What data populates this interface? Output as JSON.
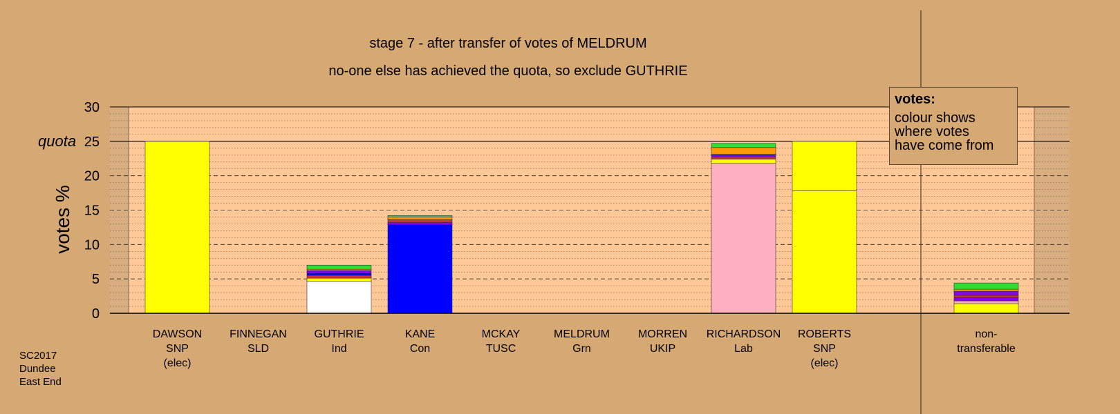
{
  "titles": {
    "line1": "stage 7 - after transfer of votes of MELDRUM",
    "line2": "no-one else has achieved the quota, so exclude GUTHRIE"
  },
  "legend": {
    "heading": "votes:",
    "lines": [
      "colour shows",
      "where votes",
      "have come from"
    ]
  },
  "footer": {
    "lines": [
      "SC2017",
      "Dundee",
      "East End"
    ]
  },
  "colors": {
    "background": "#d5a874",
    "plot_area": "#ffc896",
    "SNP": "#ffff00",
    "Con": "#0000ff",
    "Lab": "#ffb0c0",
    "Ind": "#ffffff",
    "Grn": "#33dd33",
    "SLD": "#ff9900",
    "TUSC": "#cc3333",
    "UKIP": "#8800ee"
  },
  "chart_data": {
    "type": "bar",
    "stacked": true,
    "ylabel": "votes %",
    "ylim": [
      0,
      30
    ],
    "yticks": [
      0,
      5,
      10,
      15,
      20,
      25,
      30
    ],
    "quota": 25,
    "quota_label": "quota",
    "grid": true,
    "candidates": [
      {
        "name": "DAWSON",
        "party": "SNP",
        "note": "(elec)",
        "segments": [
          {
            "source": "SNP",
            "color": "#ffff00",
            "value": 25.0
          }
        ]
      },
      {
        "name": "FINNEGAN",
        "party": "SLD",
        "note": "",
        "segments": []
      },
      {
        "name": "GUTHRIE",
        "party": "Ind",
        "note": "",
        "segments": [
          {
            "source": "Ind",
            "color": "#ffffff",
            "value": 4.6
          },
          {
            "source": "SNP",
            "color": "#ffff00",
            "value": 0.5
          },
          {
            "source": "TUSC",
            "color": "#cc3333",
            "value": 0.4
          },
          {
            "source": "Con",
            "color": "#0000ff",
            "value": 0.3
          },
          {
            "source": "UKIP",
            "color": "#8800ee",
            "value": 0.4
          },
          {
            "source": "SLD",
            "color": "#ff9900",
            "value": 0.2
          },
          {
            "source": "Grn",
            "color": "#33dd33",
            "value": 0.6
          }
        ]
      },
      {
        "name": "KANE",
        "party": "Con",
        "note": "",
        "segments": [
          {
            "source": "Con",
            "color": "#0000ff",
            "value": 12.9
          },
          {
            "source": "UKIP",
            "color": "#8800ee",
            "value": 0.3
          },
          {
            "source": "TUSC",
            "color": "#cc3333",
            "value": 0.4
          },
          {
            "source": "SLD",
            "color": "#ff9900",
            "value": 0.4
          },
          {
            "source": "Grn",
            "color": "#33dd33",
            "value": 0.2
          }
        ]
      },
      {
        "name": "MCKAY",
        "party": "TUSC",
        "note": "",
        "segments": []
      },
      {
        "name": "MELDRUM",
        "party": "Grn",
        "note": "",
        "segments": []
      },
      {
        "name": "MORREN",
        "party": "UKIP",
        "note": "",
        "segments": []
      },
      {
        "name": "RICHARDSON",
        "party": "Lab",
        "note": "",
        "segments": [
          {
            "source": "Lab",
            "color": "#ffb0c0",
            "value": 21.8
          },
          {
            "source": "SNP",
            "color": "#ffff00",
            "value": 0.6
          },
          {
            "source": "TUSC",
            "color": "#cc3333",
            "value": 0.3
          },
          {
            "source": "UKIP",
            "color": "#8800ee",
            "value": 0.3
          },
          {
            "source": "Con",
            "color": "#0000ff",
            "value": 0.1
          },
          {
            "source": "SLD",
            "color": "#ff9900",
            "value": 1.0
          },
          {
            "source": "Grn",
            "color": "#33dd33",
            "value": 0.6
          }
        ]
      },
      {
        "name": "ROBERTS",
        "party": "SNP",
        "note": "(elec)",
        "segments": [
          {
            "source": "SNP",
            "color": "#ffff00",
            "value": 17.8
          },
          {
            "source": "SNP",
            "color": "#ffff00",
            "value": 7.2
          }
        ]
      },
      {
        "name": "non-",
        "party": "transferable",
        "note": "",
        "segments": [
          {
            "source": "SNP",
            "color": "#ffff00",
            "value": 1.4
          },
          {
            "source": "Lab",
            "color": "#ffb0c0",
            "value": 0.4
          },
          {
            "source": "UKIP",
            "color": "#8800ee",
            "value": 0.5
          },
          {
            "source": "TUSC",
            "color": "#cc3333",
            "value": 0.3
          },
          {
            "source": "UKIP",
            "color": "#8800ee",
            "value": 0.6
          },
          {
            "source": "SLD",
            "color": "#ff9900",
            "value": 0.3
          },
          {
            "source": "Grn",
            "color": "#33dd33",
            "value": 0.9
          }
        ]
      }
    ]
  }
}
